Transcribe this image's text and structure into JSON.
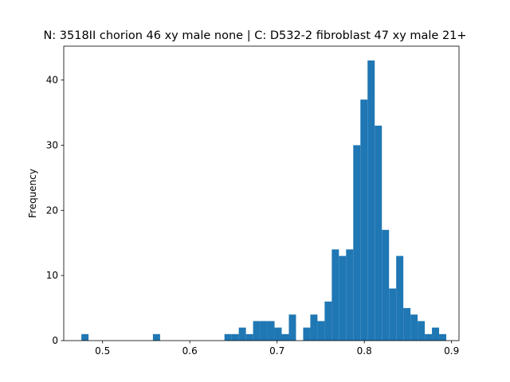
{
  "chart_data": {
    "type": "bar",
    "subtype": "histogram",
    "title": "N: 3518II chorion 46 xy male none | C: D532-2 fibroblast 47 xy male 21+",
    "xlabel": "",
    "ylabel": "Frequency",
    "xlim": [
      0.4555,
      0.9085
    ],
    "ylim": [
      0,
      45.2
    ],
    "x_ticks": [
      0.5,
      0.6,
      0.7,
      0.8,
      0.9
    ],
    "x_tick_labels": [
      "0.5",
      "0.6",
      "0.7",
      "0.8",
      "0.9"
    ],
    "y_ticks": [
      0,
      10,
      20,
      30,
      40
    ],
    "y_tick_labels": [
      "0",
      "10",
      "20",
      "30",
      "40"
    ],
    "bin_start": 0.4757,
    "bin_width": 0.0082,
    "counts": [
      1,
      0,
      0,
      0,
      0,
      0,
      0,
      0,
      0,
      0,
      1,
      0,
      0,
      0,
      0,
      0,
      0,
      0,
      0,
      0,
      1,
      1,
      2,
      1,
      3,
      3,
      3,
      2,
      1,
      4,
      0,
      2,
      4,
      3,
      6,
      14,
      13,
      14,
      30,
      37,
      43,
      33,
      17,
      8,
      13,
      5,
      4,
      3,
      1,
      2,
      1
    ],
    "bar_color": "#1f77b4",
    "grid": false,
    "legend": "none"
  }
}
